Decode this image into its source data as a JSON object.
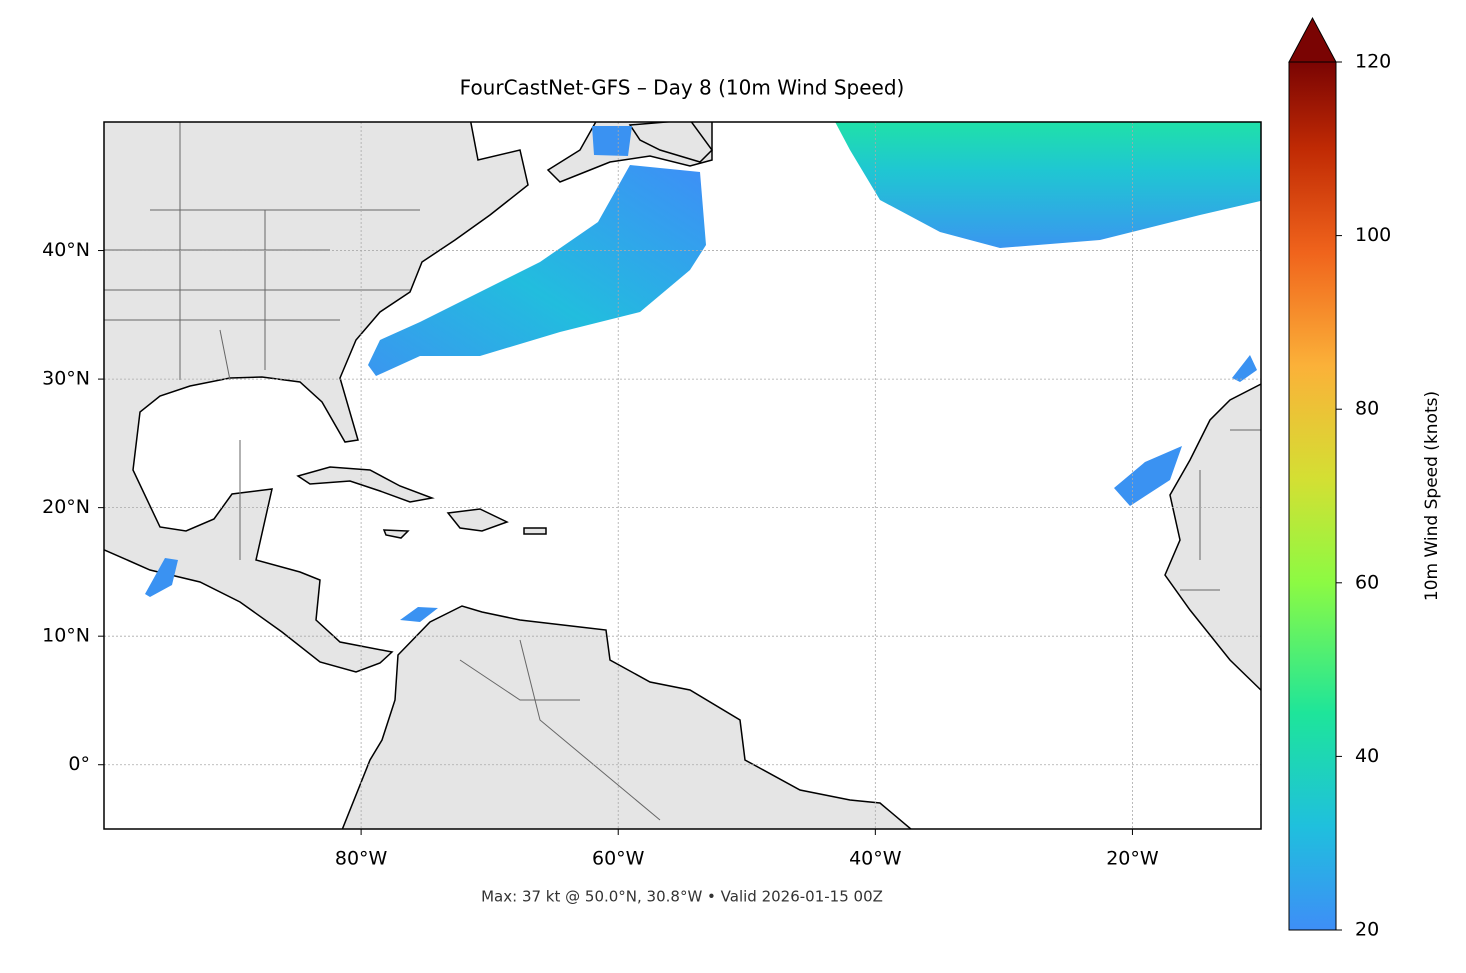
{
  "map": {
    "title": "FourCastNet-GFS – Day 8 (10m Wind Speed)",
    "xlim": [
      -100,
      -10
    ],
    "ylim": [
      -5,
      50
    ],
    "xticks": [
      {
        "value": -80,
        "label": "80°W"
      },
      {
        "value": -60,
        "label": "60°W"
      },
      {
        "value": -40,
        "label": "40°W"
      },
      {
        "value": -20,
        "label": "20°W"
      }
    ],
    "yticks": [
      {
        "value": 0,
        "label": "0°"
      },
      {
        "value": 10,
        "label": "10°N"
      },
      {
        "value": 20,
        "label": "20°N"
      },
      {
        "value": 30,
        "label": "30°N"
      },
      {
        "value": 40,
        "label": "40°N"
      }
    ],
    "grid": true
  },
  "caption": "Max: 37 kt @ 50.0°N, 30.8°W • Valid 2026-01-15 00Z",
  "colorbar": {
    "label": "10m Wind Speed (knots)",
    "lim": [
      20,
      120
    ],
    "ticks": [
      20,
      40,
      60,
      80,
      100,
      120
    ],
    "extend": "max"
  }
}
